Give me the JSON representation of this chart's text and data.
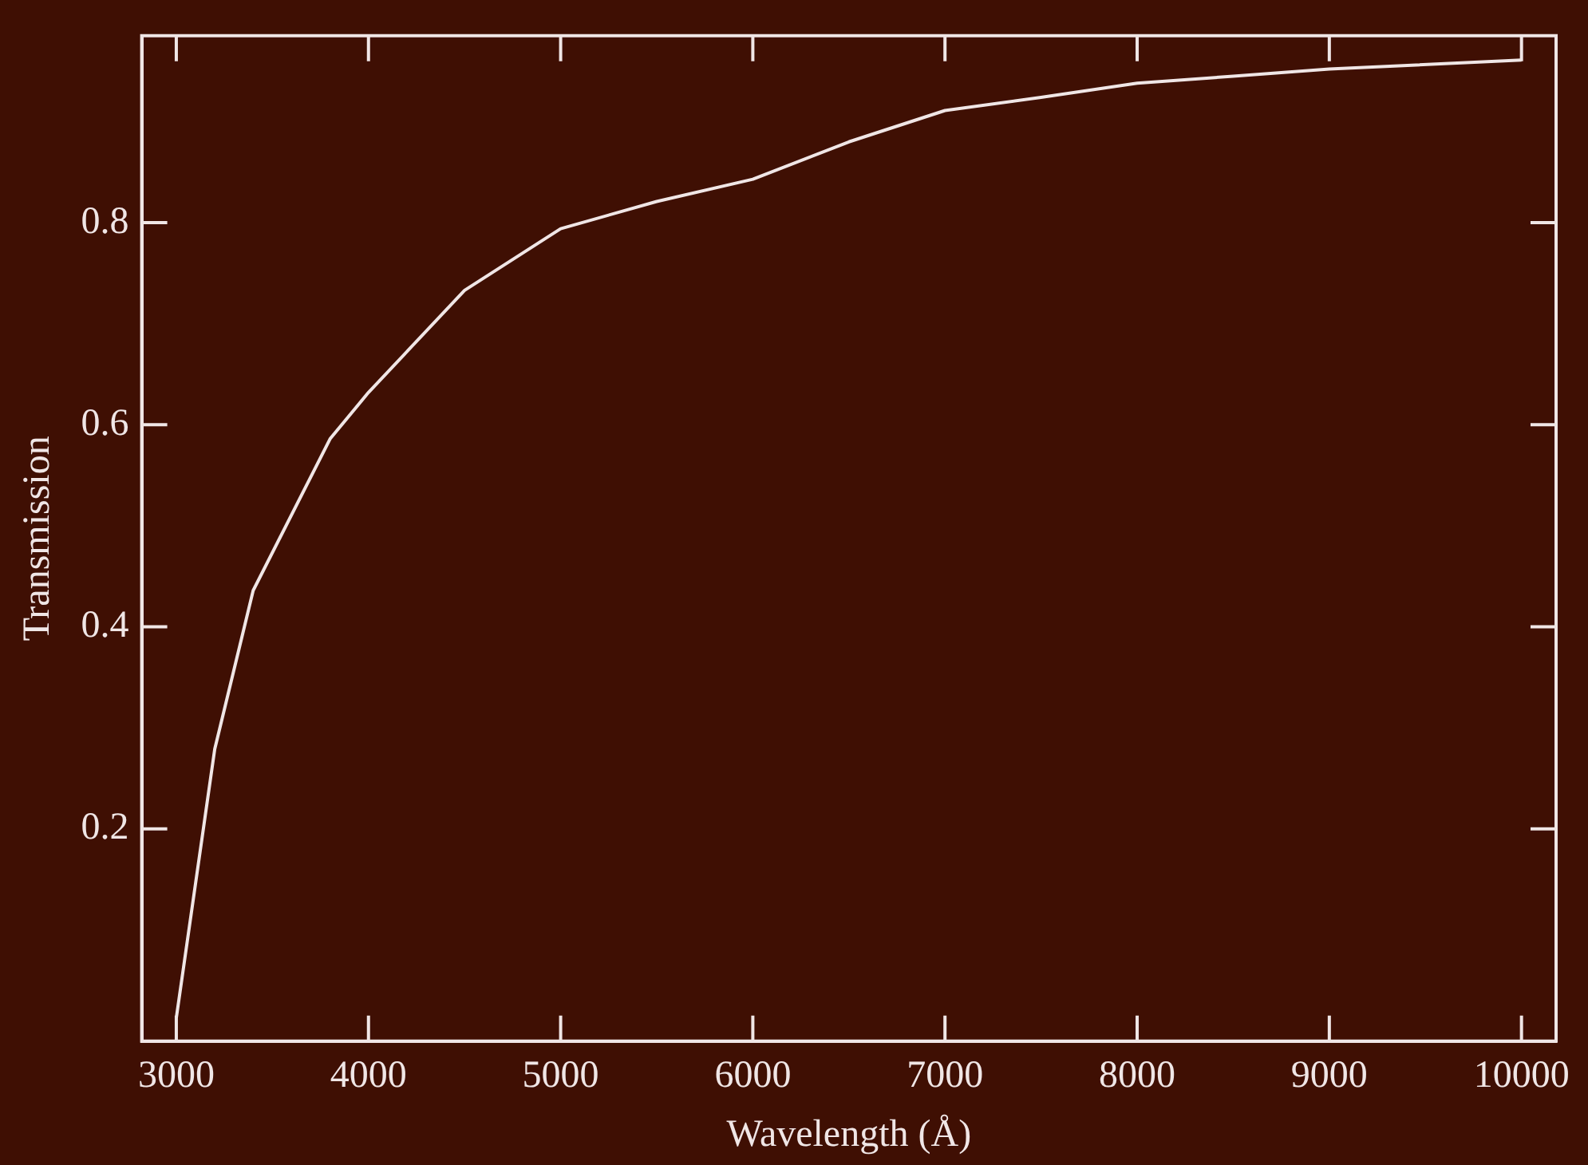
{
  "chart_data": {
    "type": "line",
    "xlabel": "Wavelength (Å)",
    "ylabel": "Transmission",
    "x": [
      3000,
      3200,
      3400,
      3800,
      4000,
      4500,
      5000,
      5500,
      6000,
      6500,
      7000,
      7500,
      8000,
      8500,
      9000,
      10000
    ],
    "series": [
      {
        "color": "#f0e6e6",
        "values": [
          0.013,
          0.279,
          0.436,
          0.586,
          0.632,
          0.733,
          0.794,
          0.821,
          0.843,
          0.88,
          0.911,
          0.924,
          0.938,
          0.945,
          0.952,
          0.961
        ]
      }
    ],
    "xlim": [
      2820,
      10180
    ],
    "ylim": [
      -0.01,
      0.985
    ],
    "xticks": [
      3000,
      4000,
      5000,
      6000,
      7000,
      8000,
      9000,
      10000
    ],
    "yticks": [
      0.2,
      0.4,
      0.6,
      0.8
    ],
    "grid": false,
    "legend": false,
    "marker": "none",
    "line_style": "solid"
  }
}
